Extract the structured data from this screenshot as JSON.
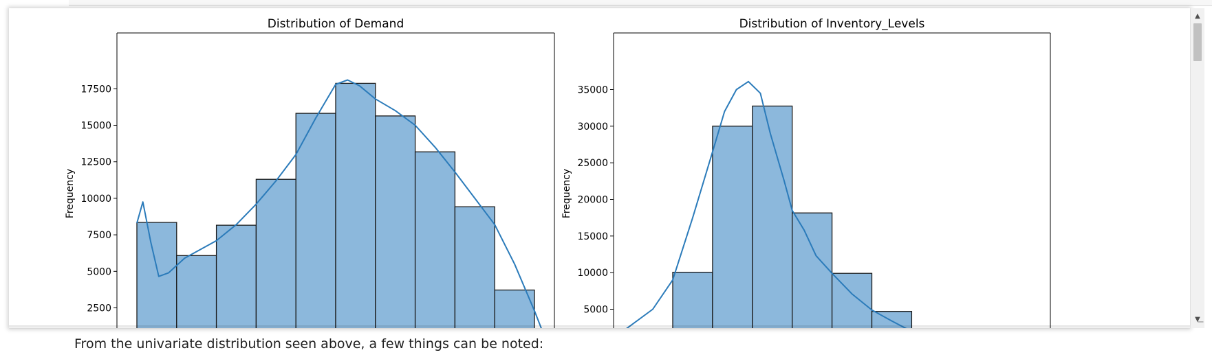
{
  "markdown": {
    "text": "From the univariate distribution seen above, a few things can be noted:"
  },
  "scrollbar": {
    "up_icon": "triangle-up",
    "down_icon": "triangle-down"
  },
  "colors": {
    "bar_fill": "#8cb8dc",
    "bar_edge": "#1a1a1a",
    "kde_line": "#2b7bba"
  },
  "chart_data": [
    {
      "type": "bar",
      "title": "Distribution of Demand",
      "xlabel": "",
      "ylabel": "Frequency",
      "ylim": [
        0,
        19000
      ],
      "yticks": [
        2500,
        5000,
        7500,
        10000,
        12500,
        15000,
        17500
      ],
      "grid": false,
      "values": [
        8350,
        6080,
        8160,
        11300,
        15820,
        17870,
        15640,
        13180,
        9420,
        3720
      ],
      "kde": [
        [
          0.0,
          8300
        ],
        [
          0.15,
          9750
        ],
        [
          0.35,
          7000
        ],
        [
          0.55,
          4650
        ],
        [
          0.8,
          4900
        ],
        [
          1.2,
          5900
        ],
        [
          1.6,
          6500
        ],
        [
          2.0,
          7100
        ],
        [
          2.5,
          8200
        ],
        [
          3.0,
          9600
        ],
        [
          3.5,
          11200
        ],
        [
          4.0,
          13000
        ],
        [
          4.5,
          15500
        ],
        [
          5.0,
          17800
        ],
        [
          5.3,
          18100
        ],
        [
          5.6,
          17700
        ],
        [
          6.0,
          16800
        ],
        [
          6.5,
          16000
        ],
        [
          7.0,
          15000
        ],
        [
          7.5,
          13500
        ],
        [
          8.0,
          11800
        ],
        [
          8.5,
          10000
        ],
        [
          9.0,
          8200
        ],
        [
          9.5,
          5500
        ],
        [
          10.0,
          2300
        ],
        [
          10.2,
          900
        ]
      ]
    },
    {
      "type": "bar",
      "title": "Distribution of Inventory_Levels",
      "xlabel": "",
      "ylabel": "Frequency",
      "ylim": [
        0,
        38000
      ],
      "yticks": [
        5000,
        10000,
        15000,
        20000,
        25000,
        30000,
        35000
      ],
      "grid": false,
      "values": [
        10050,
        30000,
        32750,
        18150,
        9900,
        4700
      ],
      "kde": [
        [
          -1.2,
          2200
        ],
        [
          -0.5,
          5000
        ],
        [
          0.0,
          9000
        ],
        [
          0.5,
          17500
        ],
        [
          1.0,
          26500
        ],
        [
          1.3,
          32000
        ],
        [
          1.6,
          35000
        ],
        [
          1.9,
          36100
        ],
        [
          2.2,
          34500
        ],
        [
          2.45,
          29000
        ],
        [
          2.8,
          22500
        ],
        [
          3.0,
          18500
        ],
        [
          3.3,
          15800
        ],
        [
          3.6,
          12300
        ],
        [
          4.0,
          9900
        ],
        [
          4.5,
          7100
        ],
        [
          5.0,
          4900
        ],
        [
          5.5,
          3400
        ],
        [
          6.2,
          1400
        ]
      ]
    }
  ]
}
